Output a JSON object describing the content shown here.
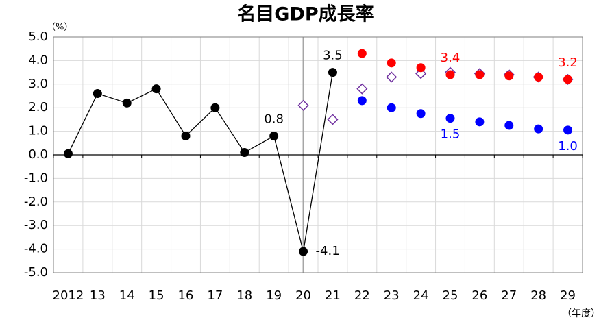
{
  "chart_data": {
    "type": "line",
    "title": "名目GDP成長率",
    "y_unit": "（%）",
    "x_unit": "（年度）",
    "categories": [
      "2012",
      "13",
      "14",
      "15",
      "16",
      "17",
      "18",
      "19",
      "20",
      "21",
      "22",
      "23",
      "24",
      "25",
      "26",
      "27",
      "28",
      "29"
    ],
    "ylim": [
      -5,
      5
    ],
    "yticks": [
      {
        "value": 5,
        "label": "5.0"
      },
      {
        "value": 4,
        "label": "4.0"
      },
      {
        "value": 3,
        "label": "3.0"
      },
      {
        "value": 2,
        "label": "2.0"
      },
      {
        "value": 1,
        "label": "1.0"
      },
      {
        "value": 0,
        "label": "0.0"
      },
      {
        "value": -1,
        "label": "-1.0"
      },
      {
        "value": -2,
        "label": "-2.0"
      },
      {
        "value": -3,
        "label": "-3.0"
      },
      {
        "value": -4,
        "label": "-4.0"
      },
      {
        "value": -5,
        "label": "-5.0"
      }
    ],
    "grid": true,
    "series": [
      {
        "color": "#000000",
        "marker": "circle",
        "line": true,
        "values": [
          0.05,
          2.6,
          2.2,
          2.8,
          0.8,
          2.0,
          0.1,
          0.8,
          -4.1,
          3.5,
          null,
          null,
          null,
          null,
          null,
          null,
          null,
          null
        ],
        "value_labels": [
          null,
          null,
          null,
          null,
          null,
          null,
          null,
          "0.8",
          "-4.1",
          "3.5",
          null,
          null,
          null,
          null,
          null,
          null,
          null,
          null
        ]
      },
      {
        "color": "#7030a0",
        "marker": "diamond",
        "line": false,
        "values": [
          null,
          null,
          null,
          null,
          null,
          null,
          null,
          null,
          2.1,
          1.5,
          2.8,
          3.3,
          3.45,
          3.5,
          3.45,
          3.4,
          3.3,
          3.2
        ]
      },
      {
        "color": "#ff0000",
        "marker": "circle",
        "line": false,
        "values": [
          null,
          null,
          null,
          null,
          null,
          null,
          null,
          null,
          null,
          null,
          4.3,
          3.9,
          3.7,
          3.4,
          3.4,
          3.35,
          3.3,
          3.2
        ],
        "value_labels": [
          null,
          null,
          null,
          null,
          null,
          null,
          null,
          null,
          null,
          null,
          null,
          null,
          null,
          "3.4",
          null,
          null,
          null,
          "3.2"
        ]
      },
      {
        "color": "#0000ff",
        "marker": "circle",
        "line": false,
        "values": [
          null,
          null,
          null,
          null,
          null,
          null,
          null,
          null,
          null,
          null,
          2.3,
          2.0,
          1.75,
          1.55,
          1.4,
          1.25,
          1.1,
          1.05
        ],
        "value_labels": [
          null,
          null,
          null,
          null,
          null,
          null,
          null,
          null,
          null,
          null,
          null,
          null,
          null,
          "1.5",
          null,
          null,
          null,
          "1.0"
        ]
      }
    ]
  }
}
